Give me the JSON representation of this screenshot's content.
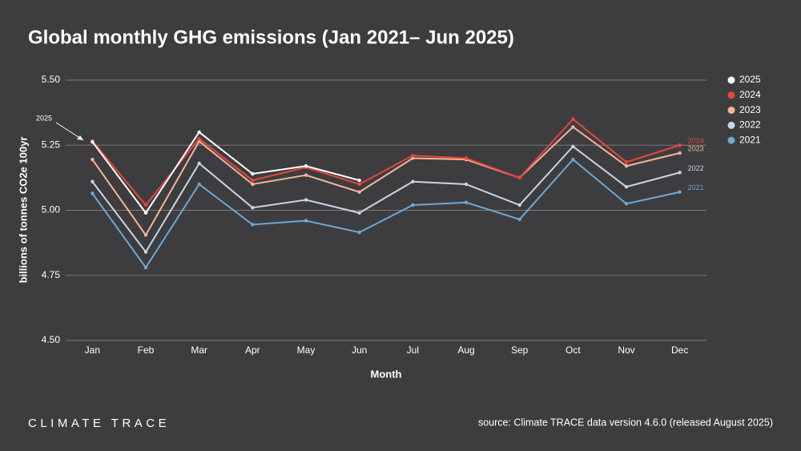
{
  "chart_data": {
    "type": "line",
    "title": "Global monthly GHG emissions (Jan 2021– Jun 2025)",
    "x_label": "Month",
    "y_label": "billions of tonnes CO2e 100yr",
    "categories": [
      "Jan",
      "Feb",
      "Mar",
      "Apr",
      "May",
      "Jun",
      "Jul",
      "Aug",
      "Sep",
      "Oct",
      "Nov",
      "Dec"
    ],
    "series": [
      {
        "name": "2025",
        "color": "#ffffff",
        "values": [
          5.263,
          4.99,
          5.3,
          5.14,
          5.17,
          5.115,
          null,
          null,
          null,
          null,
          null,
          null
        ]
      },
      {
        "name": "2024",
        "color": "#e8453c",
        "values": [
          5.266,
          5.02,
          5.275,
          5.115,
          5.165,
          5.1,
          5.21,
          5.2,
          5.125,
          5.35,
          5.185,
          5.25
        ]
      },
      {
        "name": "2023",
        "color": "#f4b49a",
        "values": [
          5.195,
          4.905,
          5.265,
          5.1,
          5.135,
          5.07,
          5.2,
          5.195,
          5.125,
          5.32,
          5.17,
          5.22
        ]
      },
      {
        "name": "2022",
        "color": "#c8d6e5",
        "values": [
          5.11,
          4.84,
          5.18,
          5.01,
          5.04,
          4.99,
          5.11,
          5.1,
          5.02,
          5.245,
          5.09,
          5.145
        ]
      },
      {
        "name": "2021",
        "color": "#6fa8d6",
        "values": [
          5.065,
          4.78,
          5.1,
          4.945,
          4.96,
          4.915,
          5.02,
          5.03,
          4.965,
          5.195,
          5.025,
          5.07
        ]
      }
    ],
    "ylim": [
      4.5,
      5.5
    ],
    "yticks": [
      {
        "value": 4.5,
        "label": "4.50"
      },
      4.75,
      {
        "value": 5.0,
        "label": "5.00"
      },
      5.25,
      {
        "value": 5.5,
        "label": "5.50"
      }
    ],
    "grid": true,
    "legend": "right",
    "annotation": "2025",
    "source": "source: Climate TRACE data version 4.6.0 (released August 2025)",
    "logo": "CLIMATE TRACE"
  }
}
